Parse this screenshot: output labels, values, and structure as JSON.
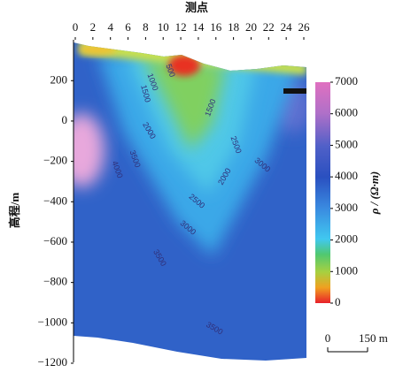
{
  "chart_data": {
    "type": "contour",
    "title": "测点",
    "y_label": "高程/m",
    "xlim": [
      0,
      26
    ],
    "xticks": [
      0,
      2,
      4,
      6,
      8,
      10,
      12,
      14,
      16,
      18,
      20,
      22,
      24,
      26
    ],
    "ylim": [
      -1200,
      400
    ],
    "yticks": [
      {
        "value": -1200,
        "label": "−1200"
      },
      {
        "value": -1000,
        "label": "−1000"
      },
      {
        "value": -800,
        "label": "−800"
      },
      {
        "value": -600,
        "label": "−600"
      },
      {
        "value": -400,
        "label": "−400"
      },
      {
        "value": -200,
        "label": "−200"
      },
      0,
      200
    ],
    "colorbar": {
      "title": "ρ / (Ω·m)",
      "lim": [
        0,
        7000
      ],
      "ticks": [
        0,
        1000,
        2000,
        3000,
        4000,
        5000,
        6000,
        7000
      ]
    },
    "contour_labels": [
      500,
      1000,
      1500,
      1500,
      2000,
      2500,
      3000,
      3500,
      4000,
      2000,
      2500,
      3000,
      3500,
      3500
    ],
    "scale_bar": {
      "start_label": 0,
      "end_label": "150 m"
    }
  }
}
